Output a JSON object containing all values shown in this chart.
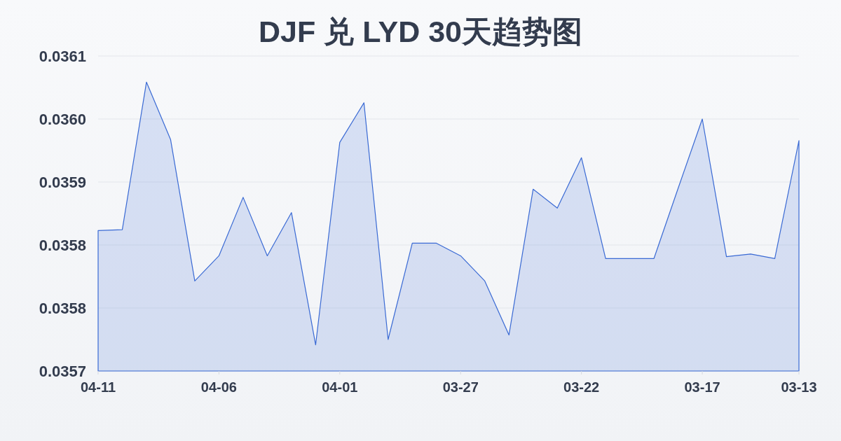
{
  "chart_data": {
    "type": "area",
    "title": "DJF 兑 LYD 30天趋势图",
    "categories": [
      "04-11",
      null,
      null,
      null,
      null,
      "04-06",
      null,
      null,
      null,
      null,
      "04-01",
      null,
      null,
      null,
      null,
      "03-27",
      null,
      null,
      null,
      null,
      "03-22",
      null,
      null,
      null,
      null,
      "03-17",
      null,
      null,
      null,
      "03-13"
    ],
    "series": [
      {
        "color": "#3a6ad4",
        "values": [
          0.035856,
          0.035857,
          0.036021,
          0.035957,
          0.0358,
          0.035828,
          0.035893,
          0.035828,
          0.035876,
          0.035729,
          0.035954,
          0.035998,
          0.035735,
          0.035842,
          0.035842,
          0.035828,
          0.0358,
          0.03574,
          0.035902,
          0.035881,
          0.035937,
          0.035825,
          0.035825,
          0.035825,
          0.035903,
          0.03598,
          0.035827,
          0.03583,
          0.035825,
          0.035956
        ]
      }
    ],
    "ylim": [
      0.0357,
      0.03605
    ],
    "yticks": [
      {
        "value": 0.0357,
        "label": "0.0357"
      },
      {
        "value": 0.03577,
        "label": "0.0358"
      },
      {
        "value": 0.03584,
        "label": "0.0358"
      },
      {
        "value": 0.03591,
        "label": "0.0359"
      },
      {
        "value": 0.03598,
        "label": "0.0360"
      },
      {
        "value": 0.03605,
        "label": "0.0361"
      }
    ],
    "grid": "y"
  }
}
